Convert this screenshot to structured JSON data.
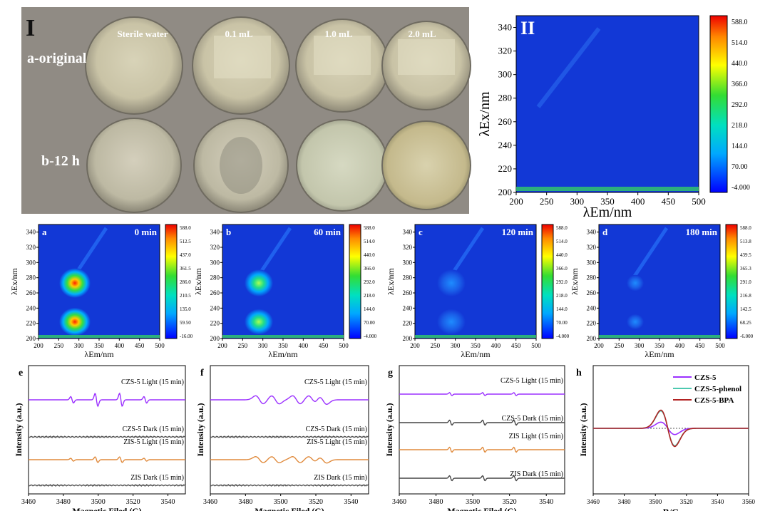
{
  "panelI": {
    "label": "I",
    "columns": [
      "Sterile water",
      "0.1 mL",
      "1.0 mL",
      "2.0 mL"
    ],
    "rows": [
      "a-original",
      "b-12 h"
    ]
  },
  "panelII": {
    "label": "II",
    "yticks": [
      "340",
      "320",
      "300",
      "280",
      "260",
      "240",
      "220",
      "200"
    ],
    "xticks": [
      "200",
      "250",
      "300",
      "350",
      "400",
      "450",
      "500"
    ],
    "ylabel": "λEx/nm",
    "xlabel": "λEm/nm",
    "colorbar": [
      "588.0",
      "514.0",
      "440.0",
      "366.0",
      "292.0",
      "218.0",
      "144.0",
      "70.00",
      "-4.000"
    ]
  },
  "eem": [
    {
      "label": "a",
      "time": "0 min",
      "colorbar": [
        "588.0",
        "512.5",
        "437.0",
        "361.5",
        "286.0",
        "210.5",
        "135.0",
        "59.50",
        "-16.00"
      ]
    },
    {
      "label": "b",
      "time": "60 min",
      "colorbar": [
        "588.0",
        "514.0",
        "440.0",
        "366.0",
        "292.0",
        "218.0",
        "144.0",
        "70.00",
        "-4.000"
      ]
    },
    {
      "label": "c",
      "time": "120 min",
      "colorbar": [
        "588.0",
        "514.0",
        "440.0",
        "366.0",
        "292.0",
        "218.0",
        "144.0",
        "70.00",
        "-4.000"
      ]
    },
    {
      "label": "d",
      "time": "180 min",
      "colorbar": [
        "588.0",
        "513.8",
        "439.5",
        "365.3",
        "291.0",
        "216.8",
        "142.5",
        "68.25",
        "-6.000"
      ]
    }
  ],
  "eemAxis": {
    "yticks": [
      "340",
      "320",
      "300",
      "280",
      "260",
      "240",
      "220",
      "200"
    ],
    "xticks": [
      "200",
      "250",
      "300",
      "350",
      "400",
      "450",
      "500"
    ],
    "ylabel": "λEx/nm",
    "xlabel": "λEm/nm"
  },
  "epr": {
    "ylabel": "Intensity (a.u.)",
    "xlabel": "Magnetic Filed (G)",
    "xticks": [
      "3460",
      "3480",
      "3500",
      "3520",
      "3540"
    ],
    "e": {
      "label": "e",
      "traces": [
        "CZS-5 Light (15 min)",
        "CZS-5 Dark (15 min)",
        "ZIS-5 Light (15 min)",
        "ZIS Dark (15 min)"
      ]
    },
    "f": {
      "label": "f",
      "traces": [
        "CZS-5 Light (15 min)",
        "CZS-5 Dark (15 min)",
        "ZIS-5 Light (15 min)",
        "ZIS Dark (15 min)"
      ]
    },
    "g": {
      "label": "g",
      "traces": [
        "CZS-5 Light (15 min)",
        "CZS-5 Dark (15 min)",
        "ZIS Light (15 min)",
        "ZIS Dark (15 min)"
      ]
    }
  },
  "h": {
    "label": "h",
    "ylabel": "Intensity (a.u.)",
    "xlabel": "B/G",
    "xticks": [
      "3460",
      "3480",
      "3500",
      "3520",
      "3540",
      "3560"
    ],
    "legend": [
      "CZS-5",
      "CZS-5-phenol",
      "CZS-5-BPA"
    ]
  },
  "colors": {
    "purple": "#9b30ff",
    "orange": "#e08a3c",
    "gray": "#555555",
    "teal": "#4cc9b0",
    "darkred": "#b22222",
    "eemBg": "#1238d6",
    "photoBg": "#8e8982"
  }
}
